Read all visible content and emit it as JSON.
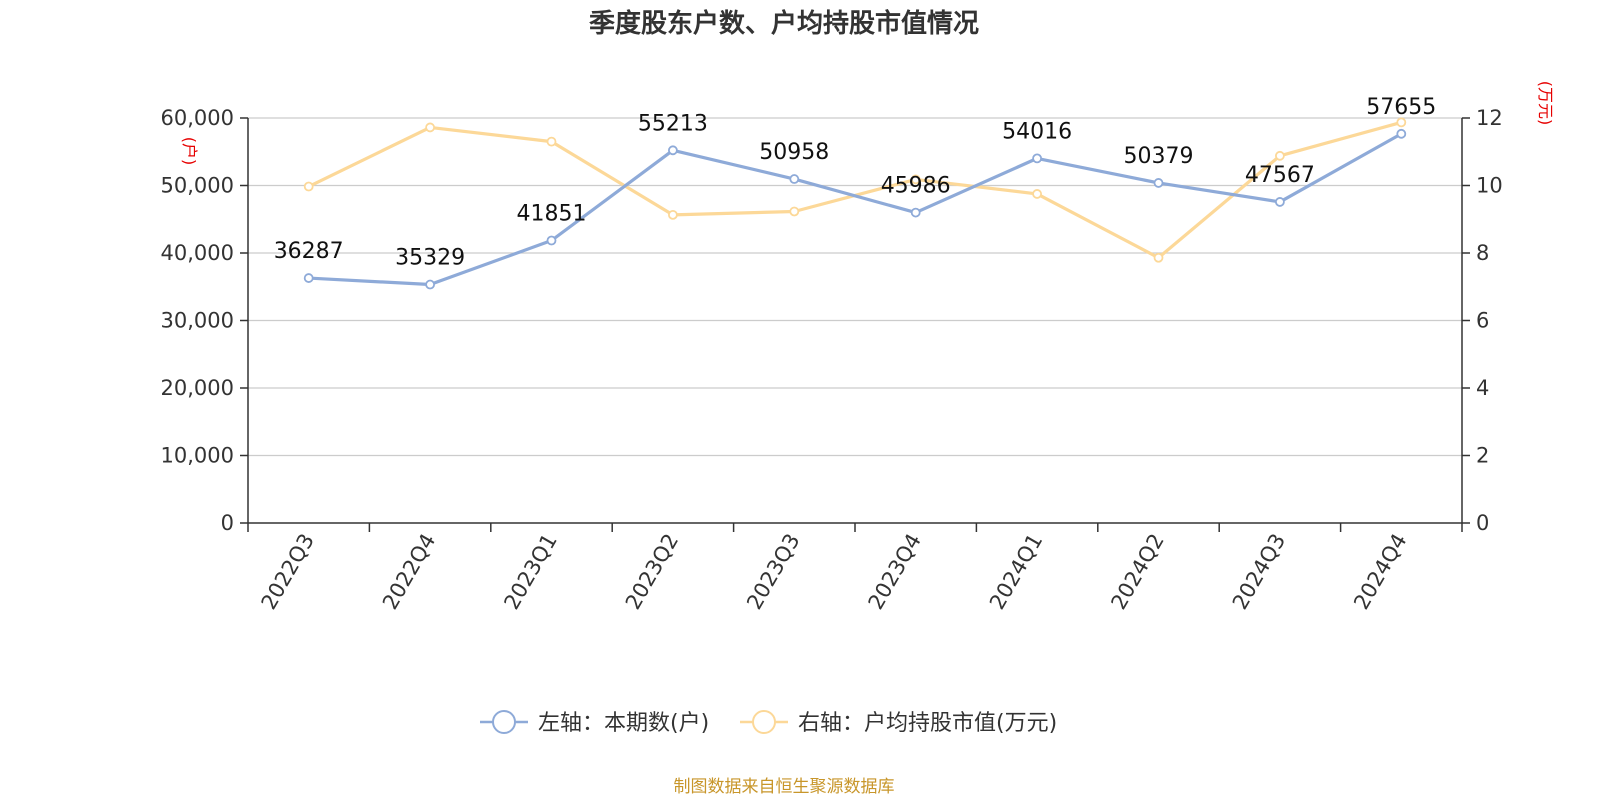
{
  "title": "季度股东户数、户均持股市值情况",
  "source": "制图数据来自恒生聚源数据库",
  "colors": {
    "series_left": "#8eaad8",
    "series_right": "#fcd898",
    "unit": "#e60000",
    "source": "#c8962a"
  },
  "chart_data": {
    "type": "line",
    "categories": [
      "2022Q3",
      "2022Q4",
      "2023Q1",
      "2023Q2",
      "2023Q3",
      "2023Q4",
      "2024Q1",
      "2024Q2",
      "2024Q3",
      "2024Q4"
    ],
    "y_left": {
      "unit": "(户)",
      "ylim": [
        0,
        60000
      ],
      "ticks": [
        0,
        10000,
        20000,
        30000,
        40000,
        50000,
        60000
      ],
      "tick_labels": [
        "0",
        "10,000",
        "20,000",
        "30,000",
        "40,000",
        "50,000",
        "60,000"
      ]
    },
    "y_right": {
      "unit": "(万元)",
      "ylim": [
        0,
        12
      ],
      "ticks": [
        0,
        2,
        4,
        6,
        8,
        10,
        12
      ],
      "tick_labels": [
        "0",
        "2",
        "4",
        "6",
        "8",
        "10",
        "12"
      ]
    },
    "grid": true,
    "legend_position": "bottom",
    "series": [
      {
        "name": "左轴：本期数(户)",
        "axis": "left",
        "values": [
          36287,
          35329,
          41851,
          55213,
          50958,
          45986,
          54016,
          50379,
          47567,
          57655
        ],
        "labels": [
          "36287",
          "35329",
          "41851",
          "55213",
          "50958",
          "45986",
          "54016",
          "50379",
          "47567",
          "57655"
        ]
      },
      {
        "name": "右轴：户均持股市值(万元)",
        "axis": "right",
        "values": [
          9.97,
          11.72,
          11.3,
          9.13,
          9.23,
          10.18,
          9.75,
          7.86,
          10.88,
          11.87
        ]
      }
    ]
  }
}
